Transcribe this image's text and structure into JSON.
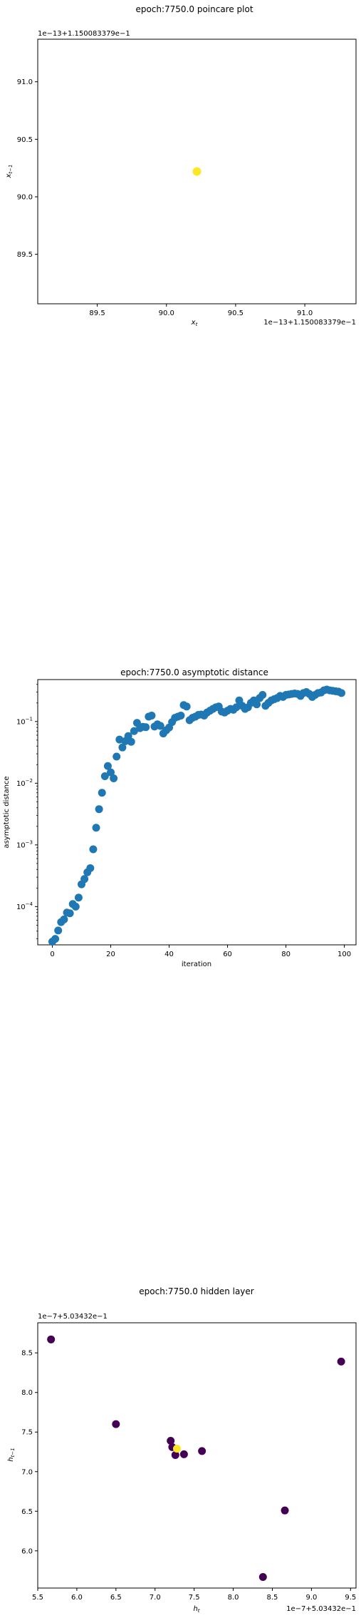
{
  "chart_data": [
    {
      "type": "scatter",
      "title": "epoch:7750.0 poincare plot",
      "xlabel": "x_t",
      "ylabel": "x_{t-1}",
      "x_offset_label": "1e−13+1.150083379e−1",
      "y_offset_label": "1e−13+1.150083379e−1",
      "xlim": [
        89.07,
        91.37
      ],
      "ylim": [
        89.07,
        91.37
      ],
      "xticks": [
        "89.5",
        "90.0",
        "90.5",
        "91.0"
      ],
      "xtick_values": [
        89.5,
        90.0,
        90.5,
        91.0
      ],
      "yticks": [
        "89.5",
        "90.0",
        "90.5",
        "91.0"
      ],
      "ytick_values": [
        89.5,
        90.0,
        90.5,
        91.0
      ],
      "points": [
        {
          "x": 90.22,
          "y": 90.22
        }
      ],
      "point_color": "#fde725"
    },
    {
      "type": "scatter",
      "title": "epoch:7750.0 asymptotic distance",
      "xlabel": "iteration",
      "ylabel": "asymptotic distance",
      "yscale": "log",
      "xlim": [
        -5,
        104
      ],
      "ylim_log10": [
        -4.62,
        -0.32
      ],
      "xticks": [
        "0",
        "20",
        "40",
        "60",
        "80",
        "100"
      ],
      "xtick_values": [
        0,
        20,
        40,
        60,
        80,
        100
      ],
      "ytick_bases": [
        "10",
        "10",
        "10",
        "10"
      ],
      "ytick_exps": [
        "−4",
        "−3",
        "−2",
        "−1"
      ],
      "ytick_values": [
        -4,
        -3,
        -2,
        -1
      ],
      "point_color": "#1f77b4",
      "x": [
        0,
        1,
        2,
        3,
        4,
        5,
        6,
        7,
        8,
        9,
        10,
        11,
        12,
        13,
        14,
        15,
        16,
        17,
        18,
        19,
        20,
        21,
        22,
        23,
        24,
        25,
        26,
        27,
        28,
        29,
        30,
        31,
        32,
        33,
        34,
        35,
        36,
        37,
        38,
        39,
        40,
        41,
        42,
        43,
        44,
        45,
        46,
        47,
        48,
        49,
        50,
        51,
        52,
        53,
        54,
        55,
        56,
        57,
        58,
        59,
        60,
        61,
        62,
        63,
        64,
        65,
        66,
        67,
        68,
        69,
        70,
        71,
        72,
        73,
        74,
        75,
        76,
        77,
        78,
        79,
        80,
        81,
        82,
        83,
        84,
        85,
        86,
        87,
        88,
        89,
        90,
        91,
        92,
        93,
        94,
        95,
        96,
        97,
        98,
        99
      ],
      "y": [
        2.7e-05,
        3e-05,
        4.1e-05,
        5.6e-05,
        6.2e-05,
        8e-05,
        7.8e-05,
        0.00011,
        0.0001,
        0.00014,
        0.00023,
        0.00028,
        0.00036,
        0.00042,
        0.00085,
        0.0019,
        0.0038,
        0.007,
        0.013,
        0.019,
        0.015,
        0.012,
        0.027,
        0.051,
        0.038,
        0.048,
        0.058,
        0.047,
        0.07,
        0.095,
        0.078,
        0.082,
        0.081,
        0.12,
        0.125,
        0.083,
        0.09,
        0.085,
        0.064,
        0.072,
        0.08,
        0.098,
        0.115,
        0.12,
        0.125,
        0.185,
        0.175,
        0.105,
        0.115,
        0.12,
        0.128,
        0.13,
        0.125,
        0.14,
        0.15,
        0.16,
        0.17,
        0.175,
        0.145,
        0.14,
        0.15,
        0.16,
        0.155,
        0.17,
        0.22,
        0.18,
        0.16,
        0.17,
        0.2,
        0.22,
        0.19,
        0.24,
        0.27,
        0.18,
        0.2,
        0.22,
        0.23,
        0.24,
        0.26,
        0.25,
        0.27,
        0.275,
        0.28,
        0.285,
        0.28,
        0.26,
        0.29,
        0.3,
        0.28,
        0.25,
        0.27,
        0.29,
        0.295,
        0.32,
        0.33,
        0.32,
        0.315,
        0.31,
        0.305,
        0.29
      ]
    },
    {
      "type": "scatter",
      "title": "epoch:7750.0 hidden layer",
      "xlabel": "h_t",
      "ylabel": "h_{t-1}",
      "x_offset_label": "1e−7+5.03432e−1",
      "y_offset_label": "1e−7+5.03432e−1",
      "xlim": [
        5.5,
        9.57
      ],
      "ylim": [
        5.53,
        8.88
      ],
      "xticks": [
        "5.5",
        "6.0",
        "6.5",
        "7.0",
        "7.5",
        "8.0",
        "8.5",
        "9.0",
        "9.5"
      ],
      "xtick_values": [
        5.5,
        6.0,
        6.5,
        7.0,
        7.5,
        8.0,
        8.5,
        9.0,
        9.5
      ],
      "yticks": [
        "6.0",
        "6.5",
        "7.0",
        "7.5",
        "8.0",
        "8.5"
      ],
      "ytick_values": [
        6.0,
        6.5,
        7.0,
        7.5,
        8.0,
        8.5
      ],
      "points": [
        {
          "x": 5.67,
          "y": 8.67,
          "c": "#440154"
        },
        {
          "x": 6.5,
          "y": 7.6,
          "c": "#440154"
        },
        {
          "x": 7.2,
          "y": 7.39,
          "c": "#440154"
        },
        {
          "x": 7.22,
          "y": 7.31,
          "c": "#440154"
        },
        {
          "x": 7.26,
          "y": 7.21,
          "c": "#440154"
        },
        {
          "x": 7.37,
          "y": 7.22,
          "c": "#440154"
        },
        {
          "x": 7.6,
          "y": 7.26,
          "c": "#440154"
        },
        {
          "x": 8.38,
          "y": 5.67,
          "c": "#440154"
        },
        {
          "x": 8.66,
          "y": 6.51,
          "c": "#440154"
        },
        {
          "x": 9.38,
          "y": 8.39,
          "c": "#440154"
        },
        {
          "x": 7.28,
          "y": 7.29,
          "c": "#fde725"
        }
      ]
    }
  ]
}
